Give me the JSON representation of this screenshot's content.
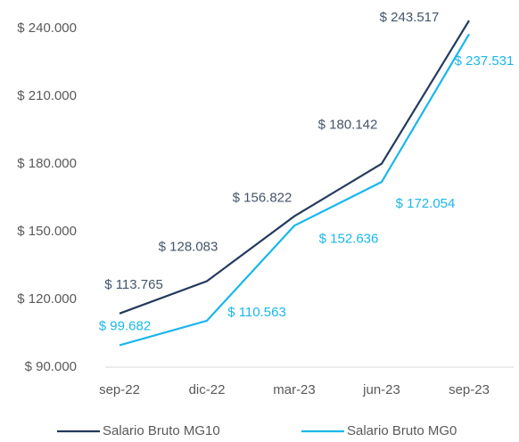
{
  "chart_data": {
    "type": "line",
    "categories": [
      "sep-22",
      "dic-22",
      "mar-23",
      "jun-23",
      "sep-23"
    ],
    "series": [
      {
        "name": "Salario Bruto MG10",
        "color": "#243a5e",
        "values": [
          113765,
          128083,
          156822,
          180142,
          243517
        ],
        "value_labels": [
          "$ 113.765",
          "$ 128.083",
          "$ 156.822",
          "$ 180.142",
          "$ 243.517"
        ]
      },
      {
        "name": "Salario Bruto MG0",
        "color": "#1ab7ea",
        "values": [
          99682,
          110563,
          152636,
          172054,
          237531
        ],
        "value_labels": [
          "$ 99.682",
          "$ 110.563",
          "$ 152.636",
          "$ 172.054",
          "$ 237.531"
        ]
      }
    ],
    "ylim": [
      90000,
      240000
    ],
    "yticks": [
      {
        "value": 90000,
        "label": "$ 90.000"
      },
      {
        "value": 120000,
        "label": "$ 120.000"
      },
      {
        "value": 150000,
        "label": "$ 150.000"
      },
      {
        "value": 180000,
        "label": "$ 180.000"
      },
      {
        "value": 210000,
        "label": "$ 210.000"
      },
      {
        "value": 240000,
        "label": "$ 240.000"
      }
    ],
    "grid": false
  }
}
